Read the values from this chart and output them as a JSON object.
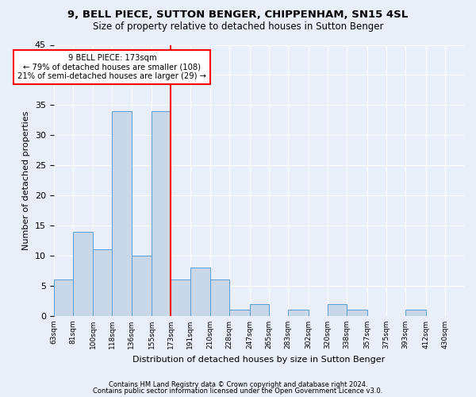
{
  "title1": "9, BELL PIECE, SUTTON BENGER, CHIPPENHAM, SN15 4SL",
  "title2": "Size of property relative to detached houses in Sutton Benger",
  "xlabel": "Distribution of detached houses by size in Sutton Benger",
  "ylabel": "Number of detached properties",
  "bins": [
    63,
    81,
    100,
    118,
    136,
    155,
    173,
    191,
    210,
    228,
    247,
    265,
    283,
    302,
    320,
    338,
    357,
    375,
    393,
    412,
    430
  ],
  "counts": [
    6,
    14,
    11,
    34,
    10,
    34,
    6,
    8,
    6,
    1,
    2,
    0,
    1,
    0,
    2,
    1,
    0,
    0,
    1,
    0
  ],
  "bar_color": "#c8d8e8",
  "bar_edge_color": "#5b9bd5",
  "ref_line_x": 173,
  "annotation_line1": "9 BELL PIECE: 173sqm",
  "annotation_line2": "← 79% of detached houses are smaller (108)",
  "annotation_line3": "21% of semi-detached houses are larger (29) →",
  "annotation_box_color": "white",
  "annotation_box_edge_color": "red",
  "ref_line_color": "red",
  "ylim": [
    0,
    45
  ],
  "yticks": [
    0,
    5,
    10,
    15,
    20,
    25,
    30,
    35,
    40,
    45
  ],
  "footer1": "Contains HM Land Registry data © Crown copyright and database right 2024.",
  "footer2": "Contains public sector information licensed under the Open Government Licence v3.0.",
  "bg_color": "#e8eff8",
  "plot_bg_color": "#e8eff8",
  "title1_fontsize": 9.5,
  "title2_fontsize": 8.5,
  "xlabel_fontsize": 8,
  "ylabel_fontsize": 8,
  "xtick_fontsize": 6.5,
  "ytick_fontsize": 8,
  "footer_fontsize": 6
}
